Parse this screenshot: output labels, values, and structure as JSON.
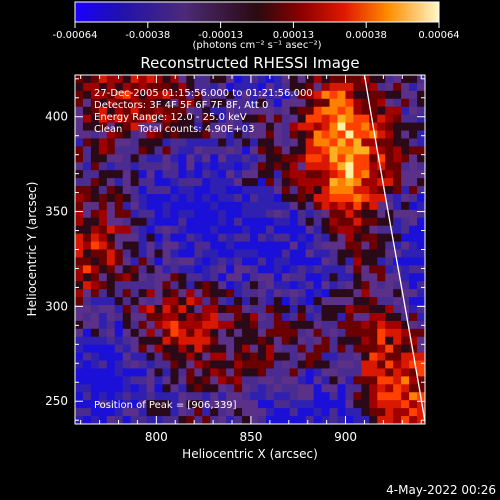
{
  "chart_data": {
    "type": "heatmap",
    "title": "Reconstructed RHESSI Image",
    "xlabel": "Heliocentric X (arcsec)",
    "ylabel": "Heliocentric Y (arcsec)",
    "xlim": [
      757,
      942
    ],
    "ylim": [
      238,
      422
    ],
    "x_ticks": [
      800,
      850,
      900
    ],
    "y_ticks": [
      250,
      300,
      350,
      400
    ],
    "colorbar": {
      "label": "(photons cm⁻² s⁻¹ asec⁻²)",
      "range": [
        -0.00064,
        0.00064
      ],
      "ticks": [
        "-0.00064",
        "-0.00038",
        "-0.00013",
        "0.00013",
        "0.00038",
        "0.00064"
      ]
    },
    "annotations": [
      "27-Dec-2005 01:15:56.000 to 01:21:56.000",
      "Detectors: 3F 4F 5F 6F 7F 8F, Att 0",
      "Energy Range: 12.0 - 25.0 keV",
      "Clean     Total counts: 4.90E+03"
    ],
    "peak": [
      906,
      339
    ],
    "peak_label": "Position of Peak = [906,339]",
    "limb": "white curve",
    "grid": false
  },
  "footer": {
    "date": "4-May-2022 00:26"
  }
}
